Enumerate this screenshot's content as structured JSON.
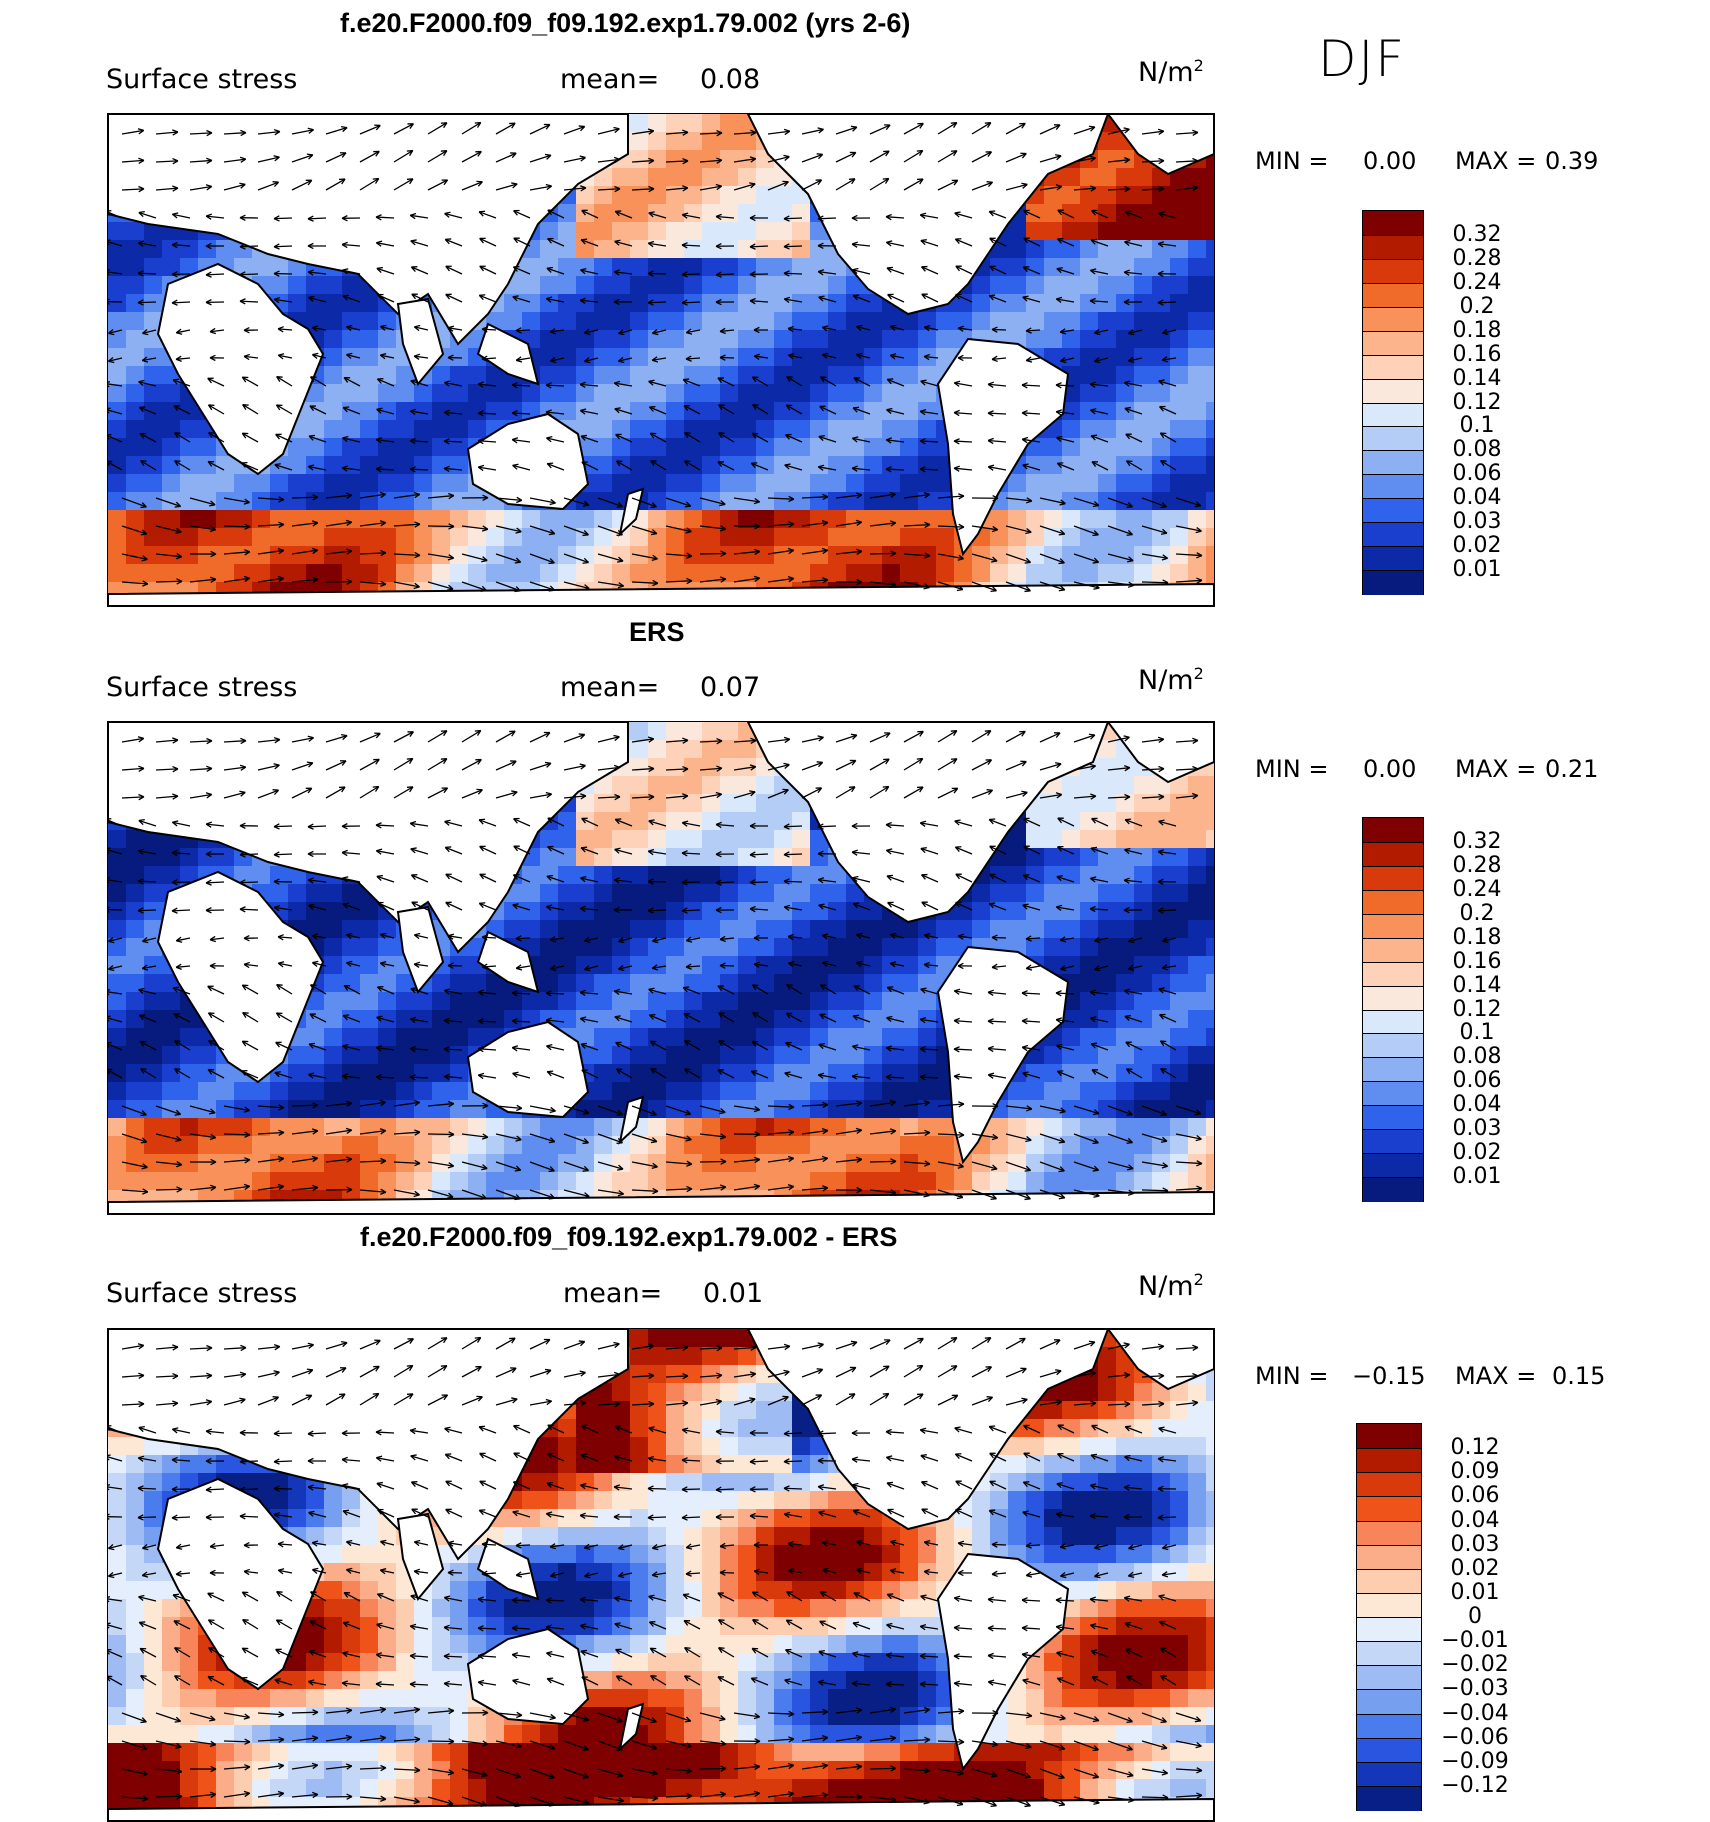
{
  "season": "DJF",
  "panels": [
    {
      "title": "f.e20.F2000.f09_f09.192.exp1.79.002 (yrs 2-6)",
      "variable": "Surface stress",
      "mean_label": "mean=",
      "mean_value": "0.08",
      "units": "N/m",
      "units_sup": "2",
      "min_label": "MIN =",
      "min_value": "0.00",
      "max_label": "MAX =",
      "max_value": "0.39",
      "colorbar": {
        "labels": [
          "0.32",
          "0.28",
          "0.24",
          "0.2",
          "0.18",
          "0.16",
          "0.14",
          "0.12",
          "0.1",
          "0.08",
          "0.06",
          "0.04",
          "0.03",
          "0.02",
          "0.01"
        ],
        "colors": [
          "#7f0000",
          "#b31b00",
          "#d93a0b",
          "#f06a2a",
          "#f8925a",
          "#fcb48c",
          "#fdd2b8",
          "#fbe8dc",
          "#d9e8fb",
          "#b4cdf6",
          "#8cb0f2",
          "#5f8ef0",
          "#2f63eb",
          "#1a3fce",
          "#0c2aa8",
          "#061b7d"
        ]
      }
    },
    {
      "title": "ERS",
      "variable": "Surface stress",
      "mean_label": "mean=",
      "mean_value": "0.07",
      "units": "N/m",
      "units_sup": "2",
      "min_label": "MIN =",
      "min_value": "0.00",
      "max_label": "MAX =",
      "max_value": "0.21",
      "colorbar": {
        "labels": [
          "0.32",
          "0.28",
          "0.24",
          "0.2",
          "0.18",
          "0.16",
          "0.14",
          "0.12",
          "0.1",
          "0.08",
          "0.06",
          "0.04",
          "0.03",
          "0.02",
          "0.01"
        ],
        "colors": [
          "#7f0000",
          "#b31b00",
          "#d93a0b",
          "#f06a2a",
          "#f8925a",
          "#fcb48c",
          "#fdd2b8",
          "#fbe8dc",
          "#d9e8fb",
          "#b4cdf6",
          "#8cb0f2",
          "#5f8ef0",
          "#2f63eb",
          "#1a3fce",
          "#0c2aa8",
          "#061b7d"
        ]
      }
    },
    {
      "title": "f.e20.F2000.f09_f09.192.exp1.79.002 - ERS",
      "variable": "Surface stress",
      "mean_label": "mean=",
      "mean_value": "0.01",
      "units": "N/m",
      "units_sup": "2",
      "min_label": "MIN =",
      "min_value": "−0.15",
      "max_label": "MAX =",
      "max_value": "0.15",
      "colorbar": {
        "labels": [
          "0.12",
          "0.09",
          "0.06",
          "0.04",
          "0.03",
          "0.02",
          "0.01",
          "0",
          "−0.01",
          "−0.02",
          "−0.03",
          "−0.04",
          "−0.06",
          "−0.09",
          "−0.12"
        ],
        "colors": [
          "#7f0000",
          "#b31b00",
          "#d93a0b",
          "#f0531a",
          "#f8845a",
          "#fbac88",
          "#fdcdb0",
          "#fde8d6",
          "#e4eefc",
          "#c4d7f7",
          "#9ebcf3",
          "#769ff0",
          "#4a7cee",
          "#2a55e0",
          "#1436b8",
          "#081f86"
        ]
      }
    }
  ]
}
